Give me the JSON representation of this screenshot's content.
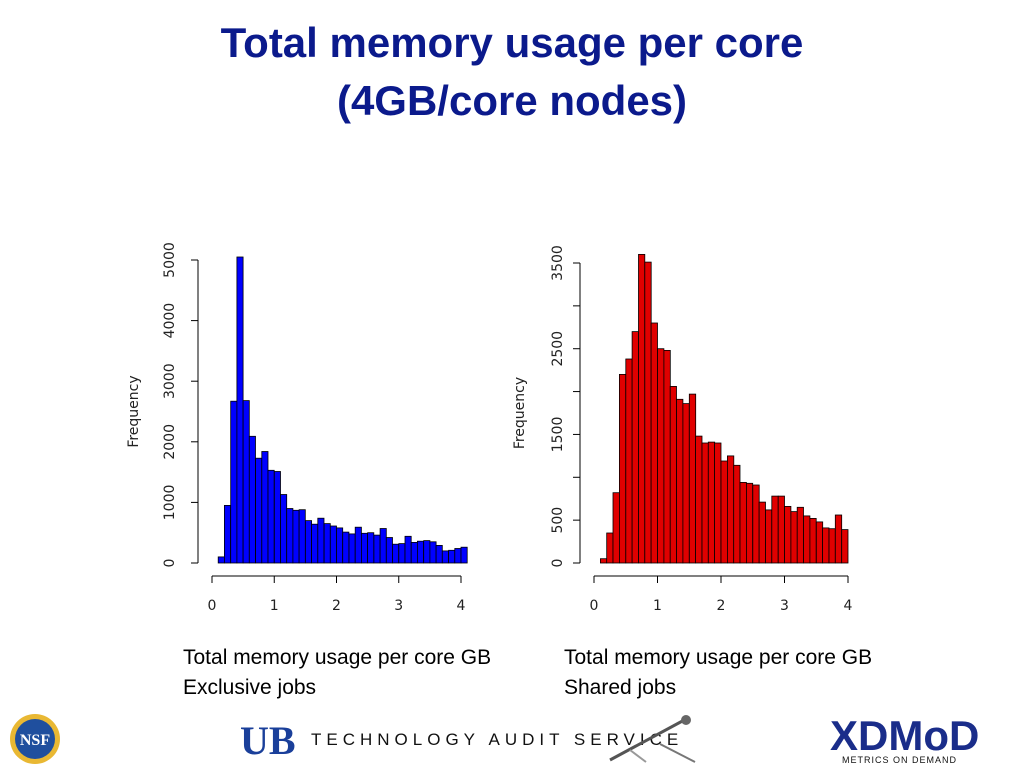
{
  "slide": {
    "title_line1": "Total memory usage per core",
    "title_line2": "(4GB/core nodes)"
  },
  "captions": {
    "left_line1": "Total memory usage per core GB",
    "left_line2": "Exclusive jobs",
    "right_line1": "Total memory usage per core GB",
    "right_line2": "Shared jobs"
  },
  "footer": {
    "tas_text": "TECHNOLOGY AUDIT SERVICE",
    "ub_logo_text": "UB",
    "nsf_logo_text": "NSF",
    "xdmod_logo_main": "XDMoD",
    "xdmod_logo_sub": "METRICS ON DEMAND"
  },
  "chart_data": [
    {
      "type": "bar",
      "subtype": "histogram",
      "color": "#0000ff",
      "ylabel": "Frequency",
      "xlim": [
        0,
        4
      ],
      "ylim": [
        0,
        5000
      ],
      "bin_width": 0.1,
      "bin_start": 0.1,
      "values": [
        100,
        950,
        2670,
        5050,
        2680,
        2090,
        1730,
        1840,
        1530,
        1510,
        1130,
        900,
        870,
        880,
        700,
        640,
        740,
        650,
        610,
        580,
        510,
        480,
        590,
        490,
        500,
        460,
        570,
        420,
        310,
        320,
        440,
        340,
        360,
        370,
        350,
        290,
        200,
        210,
        240,
        260
      ],
      "x_ticks": [
        "0",
        "1",
        "2",
        "3",
        "4"
      ],
      "y_ticks": [
        "0",
        "1000",
        "2000",
        "3000",
        "4000",
        "5000"
      ]
    },
    {
      "type": "bar",
      "subtype": "histogram",
      "color": "#e00000",
      "ylabel": "Frequency",
      "xlim": [
        0,
        4
      ],
      "ylim": [
        0,
        3500
      ],
      "bin_width": 0.1,
      "bin_start": 0.1,
      "values": [
        50,
        350,
        820,
        2200,
        2380,
        2700,
        3600,
        3510,
        2800,
        2500,
        2480,
        2060,
        1910,
        1860,
        1970,
        1480,
        1400,
        1410,
        1400,
        1190,
        1250,
        1140,
        940,
        930,
        910,
        710,
        620,
        780,
        780,
        660,
        600,
        650,
        550,
        520,
        480,
        410,
        400,
        560,
        390
      ]
    }
  ],
  "chart_axes": [
    {
      "x_ticks": [
        "0",
        "1",
        "2",
        "3",
        "4"
      ],
      "y_ticks": [
        "0",
        "1000",
        "2000",
        "3000",
        "4000",
        "5000"
      ]
    },
    {
      "x_ticks": [
        "0",
        "1",
        "2",
        "3",
        "4"
      ],
      "y_ticks": [
        "0",
        "500",
        "1500",
        "2500",
        "3500"
      ]
    }
  ]
}
